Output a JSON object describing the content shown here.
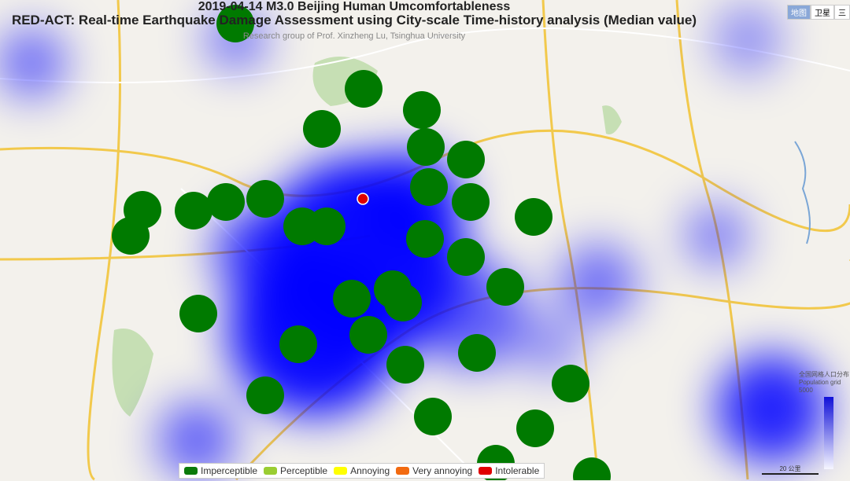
{
  "title": {
    "line1": "2019-04-14 M3.0 Beijing Human Umcomfortableness",
    "line2": "RED-ACT: Real-time Earthquake Damage Assessment using City-scale Time-history analysis (Median value)",
    "credit": "Research group of Prof. Xinzheng Lu, Tsinghua University"
  },
  "legend": [
    {
      "label": "Imperceptible",
      "color": "#0a7a0a"
    },
    {
      "label": "Perceptible",
      "color": "#9acd32"
    },
    {
      "label": "Annoying",
      "color": "#ffff00"
    },
    {
      "label": "Very annoying",
      "color": "#f26a10"
    },
    {
      "label": "Intolerable",
      "color": "#e00000"
    }
  ],
  "epicenter": {
    "color": "#e00000"
  },
  "marker_level": "Imperceptible",
  "marker_color": "#007a00",
  "map_type": {
    "options": [
      "地图",
      "卫星",
      "三"
    ]
  },
  "population_legend": {
    "title_cn": "全国网格人口分布",
    "title_en": "Population grid",
    "max": "5000"
  },
  "scale_bar": "20 公里",
  "heat_color": "#0000ff"
}
